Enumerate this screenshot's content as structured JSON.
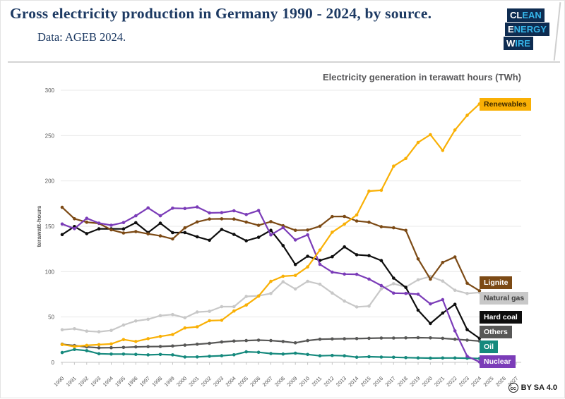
{
  "header": {
    "title": "Gross electricity production in Germany 1990 - 2024, by source.",
    "subtitle": "Data: AGEB 2024.",
    "logo": {
      "lines": [
        {
          "strong": "CL",
          "rest": "EAN"
        },
        {
          "strong": "E",
          "rest": "NERGY"
        },
        {
          "strong": "W",
          "rest": "IRE"
        }
      ]
    }
  },
  "footer": {
    "cc_icon": "cc",
    "license": "BY SA 4.0"
  },
  "colors": {
    "title_navy": "#1d3a63",
    "logo_navy": "#0e2c51",
    "logo_cyan": "#35b4e8",
    "axis_text": "#595959",
    "grid": "#e8e8e8",
    "axis_line": "#c4c4c4"
  },
  "chart_data": {
    "type": "line",
    "title": "Electricity generation in terawatt hours (TWh)",
    "ylabel": "terawatt-hours",
    "ylim": [
      0,
      300
    ],
    "y_ticks": [
      0,
      50,
      100,
      150,
      200,
      250,
      300
    ],
    "x_ticks": [
      1990,
      1991,
      1992,
      1993,
      1994,
      1995,
      1996,
      1997,
      1998,
      1999,
      2000,
      2001,
      2002,
      2003,
      2004,
      2005,
      2006,
      2007,
      2008,
      2009,
      2010,
      2011,
      2012,
      2013,
      2014,
      2015,
      2016,
      2017,
      2018,
      2019,
      2020,
      2021,
      2022,
      2023,
      2024,
      2025,
      2026,
      2027
    ],
    "years": [
      1990,
      1991,
      1992,
      1993,
      1994,
      1995,
      1996,
      1997,
      1998,
      1999,
      2000,
      2001,
      2002,
      2003,
      2004,
      2005,
      2006,
      2007,
      2008,
      2009,
      2010,
      2011,
      2012,
      2013,
      2014,
      2015,
      2016,
      2017,
      2018,
      2019,
      2020,
      2021,
      2022,
      2023,
      2024
    ],
    "legend_position": "right-inside",
    "grid": "horizontal-only",
    "series": [
      {
        "id": "others",
        "name": "Others",
        "color": "#575756",
        "label_fg": "#ffffff",
        "values": [
          20.0,
          18.5,
          17.0,
          16.0,
          16.2,
          16.5,
          17.0,
          17.3,
          17.5,
          18.0,
          19.0,
          20.0,
          21.0,
          22.5,
          23.5,
          24.0,
          24.5,
          24.0,
          23.0,
          21.5,
          24.0,
          25.5,
          25.8,
          26.0,
          26.2,
          26.5,
          26.8,
          26.8,
          27.0,
          27.2,
          27.0,
          26.5,
          25.5,
          24.5,
          23.5
        ]
      },
      {
        "id": "oil",
        "name": "Oil",
        "color": "#15897d",
        "label_fg": "#ffffff",
        "values": [
          10.8,
          14.2,
          12.9,
          9.5,
          9.1,
          9.1,
          8.8,
          8.2,
          8.7,
          8.2,
          5.9,
          6.0,
          6.7,
          7.3,
          8.3,
          11.6,
          11.1,
          9.7,
          9.2,
          10.1,
          8.7,
          7.2,
          7.6,
          7.2,
          5.7,
          6.2,
          5.8,
          5.6,
          5.2,
          4.9,
          4.7,
          4.8,
          4.8,
          4.6,
          4.2
        ]
      },
      {
        "id": "natural_gas",
        "name": "Natural gas",
        "color": "#c8c8c8",
        "label_fg": "#3c3c3c",
        "values": [
          35.9,
          37.1,
          34.4,
          33.7,
          35.2,
          41.1,
          45.6,
          47.5,
          51.5,
          52.7,
          49.2,
          55.5,
          56.3,
          61.4,
          61.4,
          72.7,
          73.4,
          75.9,
          88.8,
          80.9,
          89.3,
          86.1,
          76.4,
          67.5,
          61.1,
          62.0,
          81.0,
          86.7,
          83.0,
          91.0,
          94.7,
          89.6,
          79.5,
          75.9,
          77.0
        ]
      },
      {
        "id": "hard_coal",
        "name": "Hard coal",
        "color": "#0d0d0d",
        "label_fg": "#ffffff",
        "values": [
          140.8,
          149.8,
          141.9,
          147.2,
          147.2,
          147.1,
          154.0,
          143.1,
          153.4,
          143.0,
          143.1,
          138.4,
          134.6,
          146.5,
          141.1,
          134.1,
          137.9,
          145.6,
          128.7,
          107.9,
          117.0,
          112.4,
          116.4,
          127.3,
          118.6,
          117.7,
          112.2,
          92.9,
          82.6,
          57.5,
          42.8,
          54.3,
          64.0,
          36.1,
          26.5
        ]
      },
      {
        "id": "lignite",
        "name": "Lignite",
        "color": "#7c4a15",
        "label_fg": "#ffffff",
        "values": [
          170.9,
          158.3,
          154.5,
          153.2,
          146.1,
          142.6,
          144.2,
          141.7,
          139.4,
          136.1,
          148.3,
          154.8,
          158.0,
          158.2,
          158.0,
          154.7,
          151.1,
          155.1,
          150.6,
          145.6,
          145.9,
          150.1,
          160.7,
          160.9,
          155.8,
          154.5,
          149.5,
          148.4,
          145.5,
          114.0,
          91.7,
          110.1,
          116.2,
          87.2,
          79.0
        ]
      },
      {
        "id": "nuclear",
        "name": "Nuclear",
        "color": "#7b3cb8",
        "label_fg": "#ffffff",
        "values": [
          152.5,
          147.4,
          158.8,
          153.5,
          151.2,
          154.1,
          161.6,
          170.3,
          161.6,
          170.0,
          169.6,
          171.3,
          164.8,
          165.1,
          167.1,
          163.0,
          167.4,
          140.5,
          148.5,
          134.9,
          140.6,
          108.0,
          99.5,
          97.3,
          97.1,
          91.8,
          84.6,
          76.3,
          76.0,
          75.1,
          64.4,
          69.1,
          34.7,
          6.7,
          0.5
        ]
      },
      {
        "id": "renewables",
        "name": "Renewables",
        "color": "#f9b005",
        "label_fg": "#3a2800",
        "values": [
          19.7,
          17.5,
          18.7,
          19.5,
          20.3,
          25.1,
          23.0,
          26.1,
          28.6,
          30.7,
          37.9,
          39.2,
          45.9,
          46.4,
          56.6,
          63.2,
          73.0,
          89.3,
          94.9,
          95.8,
          105.2,
          123.8,
          143.5,
          152.4,
          162.5,
          188.8,
          189.7,
          216.3,
          224.8,
          242.4,
          251.0,
          233.6,
          256.2,
          272.3,
          284.9
        ]
      }
    ]
  }
}
